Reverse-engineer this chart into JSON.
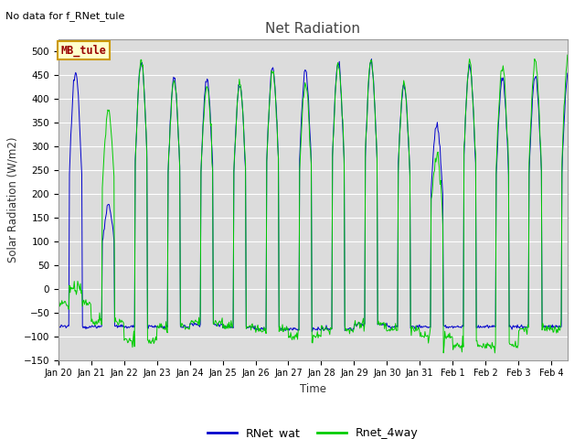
{
  "title": "Net Radiation",
  "ylabel": "Solar Radiation (W/m2)",
  "xlabel": "Time",
  "no_data_text": "No data for f_RNet_tule",
  "station_label": "MB_tule",
  "ylim": [
    -150,
    525
  ],
  "yticks": [
    -150,
    -100,
    -50,
    0,
    50,
    100,
    150,
    200,
    250,
    300,
    350,
    400,
    450,
    500
  ],
  "line1_color": "#0000cc",
  "line2_color": "#00cc00",
  "line1_label": "RNet_wat",
  "line2_label": "Rnet_4way",
  "bg_color": "#dcdcdc",
  "title_color": "#444444",
  "label_color": "#333333",
  "legend_box_color": "#ffffcc",
  "legend_box_edge": "#cc9900",
  "station_label_color": "#990000",
  "day_labels": [
    "Jan 20",
    "Jan 21",
    "Jan 22",
    "Jan 23",
    "Jan 24",
    "Jan 25",
    "Jan 26",
    "Jan 27",
    "Jan 28",
    "Jan 29",
    "Jan 30",
    "Jan 31",
    "Feb 1",
    "Feb 2",
    "Feb 3",
    "Feb 4"
  ],
  "blue_peaks": [
    455,
    175,
    480,
    440,
    440,
    430,
    465,
    460,
    475,
    480,
    430,
    345,
    470,
    445,
    450,
    455
  ],
  "green_peaks": [
    0,
    375,
    480,
    435,
    430,
    430,
    460,
    430,
    475,
    480,
    430,
    275,
    475,
    470,
    480,
    490
  ],
  "blue_night": [
    -80,
    -80,
    -80,
    -80,
    -75,
    -80,
    -85,
    -85,
    -85,
    -75,
    -80,
    -80,
    -80,
    -80,
    -80,
    -80
  ],
  "green_night": [
    -30,
    -70,
    -110,
    -80,
    -70,
    -80,
    -85,
    -100,
    -85,
    -75,
    -85,
    -100,
    -120,
    -120,
    -85,
    -85
  ]
}
